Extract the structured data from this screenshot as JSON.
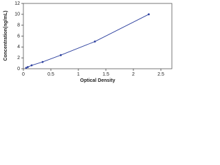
{
  "chart_data": {
    "type": "scatter",
    "xlabel": "Optical Density",
    "ylabel": "Concentration(ng/mL)",
    "x": [
      0.05,
      0.08,
      0.15,
      0.35,
      0.68,
      1.3,
      2.28
    ],
    "values": [
      0.156,
      0.3125,
      0.625,
      1.25,
      2.5,
      5,
      10
    ],
    "color": "#2b3f9e",
    "line": true,
    "xlim": [
      0,
      2.7
    ],
    "xticks": [
      0,
      0.5,
      1,
      1.5,
      2,
      2.5
    ],
    "ylim": [
      0,
      12
    ],
    "yticks": [
      0,
      2,
      4,
      6,
      8,
      10,
      12
    ]
  }
}
